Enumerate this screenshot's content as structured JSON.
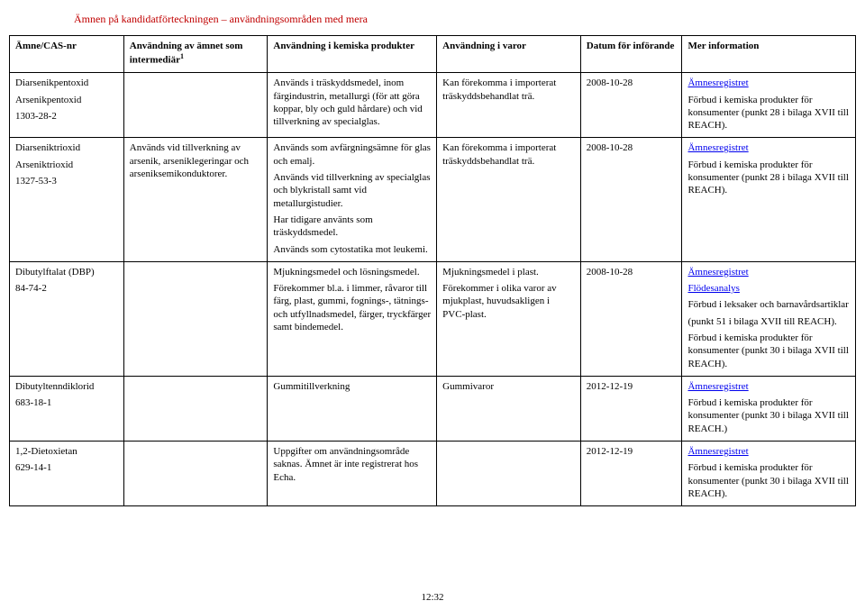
{
  "document": {
    "title": "Ämnen på kandidatförteckningen – användningsområden med mera",
    "page_number": "12:32"
  },
  "table": {
    "headers": {
      "c0": "Ämne/CAS-nr",
      "c1_a": "Användning av ämnet som intermediär",
      "c1_sup": "1",
      "c2": "Användning i kemiska produkter",
      "c3": "Användning i varor",
      "c4": "Datum för införande",
      "c5": "Mer information"
    },
    "rows": [
      {
        "c0": [
          "Diarsenikpentoxid",
          "Arsenikpentoxid",
          "1303-28-2"
        ],
        "c1": [],
        "c2": [
          "Används i träskyddsmedel, inom färgindustrin, metallurgi (för att göra koppar, bly och guld hårdare) och vid tillverkning av specialglas."
        ],
        "c3": [
          "Kan förekomma i importerat träskyddsbehandlat trä."
        ],
        "c4": [
          "2008-10-28"
        ],
        "c5": [
          {
            "text": "Ämnesregistret",
            "link": true
          },
          {
            "text": "Förbud i kemiska produkter för konsumenter (punkt 28 i bilaga XVII till REACH)."
          }
        ]
      },
      {
        "c0": [
          "Diarseniktrioxid",
          "Arseniktrioxid",
          "1327-53-3"
        ],
        "c1": [
          "Används vid tillverkning av arsenik, arseniklegeringar och arseniksemikonduktorer."
        ],
        "c2": [
          "Används som avfärgningsämne för glas och emalj.",
          "Används vid tillverkning av specialglas och blykristall samt vid metallurgistudier.",
          "Har tidigare använts som träskyddsmedel.",
          "Används som cytostatika mot leukemi."
        ],
        "c3": [
          "Kan förekomma i importerat träskyddsbehandlat trä."
        ],
        "c4": [
          "2008-10-28"
        ],
        "c5": [
          {
            "text": "Ämnesregistret",
            "link": true
          },
          {
            "text": "Förbud i kemiska produkter för konsumenter (punkt 28 i bilaga XVII till REACH)."
          }
        ]
      },
      {
        "c0": [
          "Dibutylftalat (DBP)",
          "84-74-2"
        ],
        "c1": [],
        "c2": [
          "Mjukningsmedel och lösningsmedel.",
          "Förekommer bl.a. i limmer, råvaror till färg, plast, gummi, fognings-, tätnings- och utfyllnadsmedel, färger, tryckfärger samt bindemedel."
        ],
        "c3": [
          "Mjukningsmedel i plast.",
          "Förekommer i olika varor av mjukplast, huvudsakligen i PVC-plast."
        ],
        "c4": [
          "2008-10-28"
        ],
        "c5": [
          {
            "text": "Ämnesregistret",
            "link": true
          },
          {
            "text": "Flödesanalys",
            "link": true
          },
          {
            "text": "Förbud i leksaker och barnavårdsartiklar"
          },
          {
            "text": "(punkt 51 i bilaga XVII till REACH)."
          },
          {
            "text": "Förbud i kemiska produkter för konsumenter (punkt 30 i bilaga XVII till REACH)."
          }
        ]
      },
      {
        "c0": [
          "Dibutyltenndiklorid",
          "683-18-1"
        ],
        "c1": [],
        "c2": [
          "Gummitillverkning"
        ],
        "c3": [
          "Gummivaror"
        ],
        "c4": [
          "2012-12-19"
        ],
        "c5": [
          {
            "text": "Ämnesregistret",
            "link": true
          },
          {
            "text": "Förbud i kemiska produkter för konsumenter (punkt 30 i bilaga XVII till REACH.)"
          }
        ]
      },
      {
        "c0": [
          "1,2-Dietoxietan",
          "629-14-1"
        ],
        "c1": [],
        "c2": [
          "Uppgifter om användningsområde saknas. Ämnet är inte registrerat hos Echa."
        ],
        "c3": [],
        "c4": [
          "2012-12-19"
        ],
        "c5": [
          {
            "text": "Ämnesregistret",
            "link": true
          },
          {
            "text": "Förbud i kemiska produkter för konsumenter (punkt 30 i bilaga XVII till REACH)."
          }
        ]
      }
    ]
  }
}
